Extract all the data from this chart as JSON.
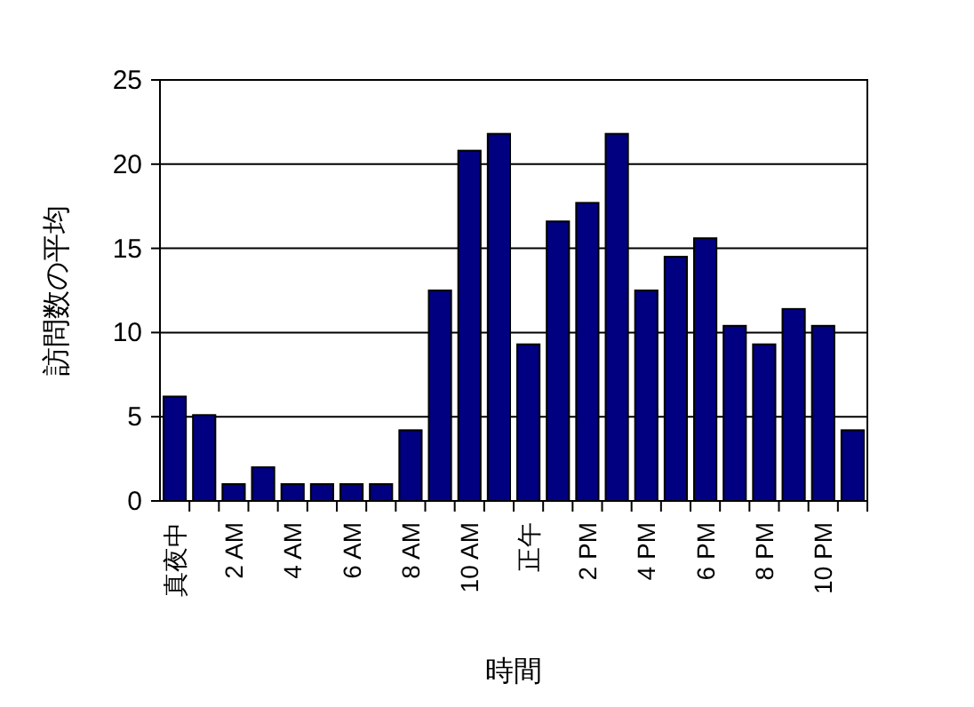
{
  "chart_data": {
    "type": "bar",
    "xlabel": "時間",
    "ylabel": "訪問数の平均",
    "categories": [
      "真夜中",
      null,
      "2 AM",
      null,
      "4 AM",
      null,
      "6 AM",
      null,
      "8 AM",
      null,
      "10 AM",
      null,
      "正午",
      null,
      "2 PM",
      null,
      "4 PM",
      null,
      "6 PM",
      null,
      "8 PM",
      null,
      "10 PM",
      null
    ],
    "values": [
      6.2,
      5.1,
      1.0,
      2.0,
      1.0,
      1.0,
      1.0,
      1.0,
      4.2,
      12.5,
      20.8,
      21.8,
      9.3,
      16.6,
      17.7,
      21.8,
      12.5,
      14.5,
      15.6,
      10.4,
      9.3,
      11.4,
      10.4,
      4.2
    ],
    "color": "#000080",
    "ylim": [
      0,
      25
    ],
    "yticks": [
      0,
      5,
      10,
      15,
      20,
      25
    ],
    "grid": "y"
  }
}
